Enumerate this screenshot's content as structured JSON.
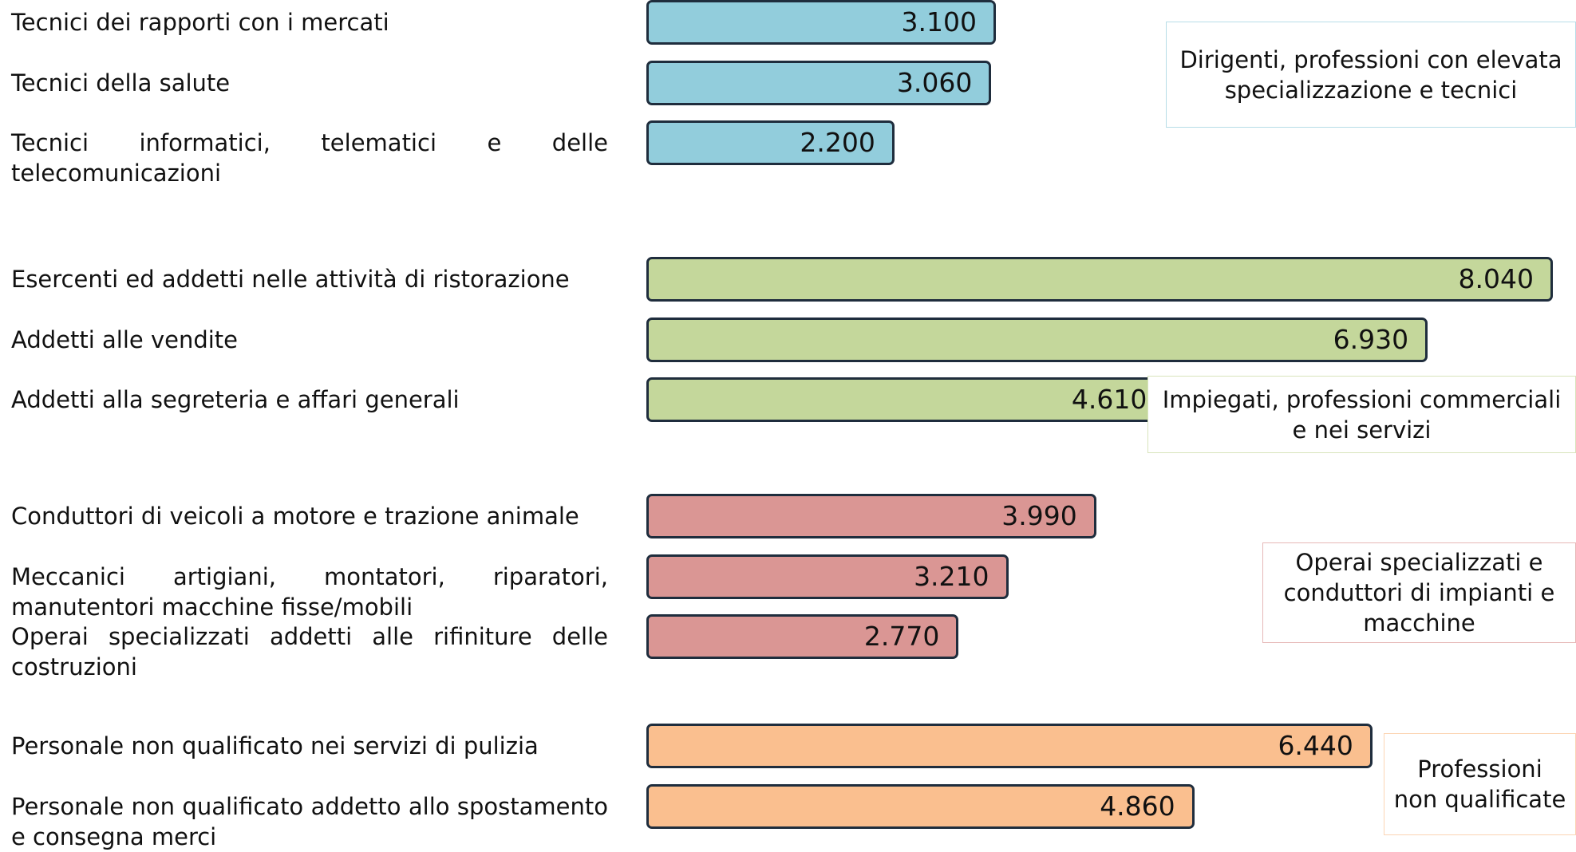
{
  "chart_data": {
    "type": "bar",
    "groups": [
      {
        "name": "Dirigenti, professioni con elevata specializzazione e tecnici",
        "color": "#92cddc",
        "border": "#b7dde8",
        "categories": [
          "Tecnici dei rapporti con i mercati",
          "Tecnici della salute",
          "Tecnici informatici, telematici e delle telecomunicazioni"
        ],
        "values": [
          3100,
          3060,
          2200
        ],
        "value_labels": [
          "3.100",
          "3.060",
          "2.200"
        ]
      },
      {
        "name": "Impiegati, professioni commerciali e nei servizi",
        "color": "#c4d79b",
        "border": "#d8e4bc",
        "categories": [
          "Esercenti ed addetti nelle attività di ristorazione",
          "Addetti alle vendite",
          "Addetti alla segreteria e affari generali"
        ],
        "values": [
          8040,
          6930,
          4610
        ],
        "value_labels": [
          "8.040",
          "6.930",
          "4.610"
        ]
      },
      {
        "name": "Operai specializzati e conduttori di impianti e macchine",
        "color": "#da9694",
        "border": "#e6b8b7",
        "categories": [
          "Conduttori di veicoli a motore e trazione animale",
          "Meccanici artigiani, montatori, riparatori, manutentori macchine fisse/mobili",
          "Operai specializzati addetti alle rifiniture delle costruzioni"
        ],
        "values": [
          3990,
          3210,
          2770
        ],
        "value_labels": [
          "3.990",
          "3.210",
          "2.770"
        ]
      },
      {
        "name": "Professioni non qualificate",
        "color": "#fabf8f",
        "border": "#fcd5b4",
        "categories": [
          "Personale non qualificato nei servizi di pulizia",
          "Personale non qualificato addetto allo spostamento e consegna merci"
        ],
        "values": [
          6440,
          4860
        ],
        "value_labels": [
          "6.440",
          "4.860"
        ]
      }
    ]
  }
}
